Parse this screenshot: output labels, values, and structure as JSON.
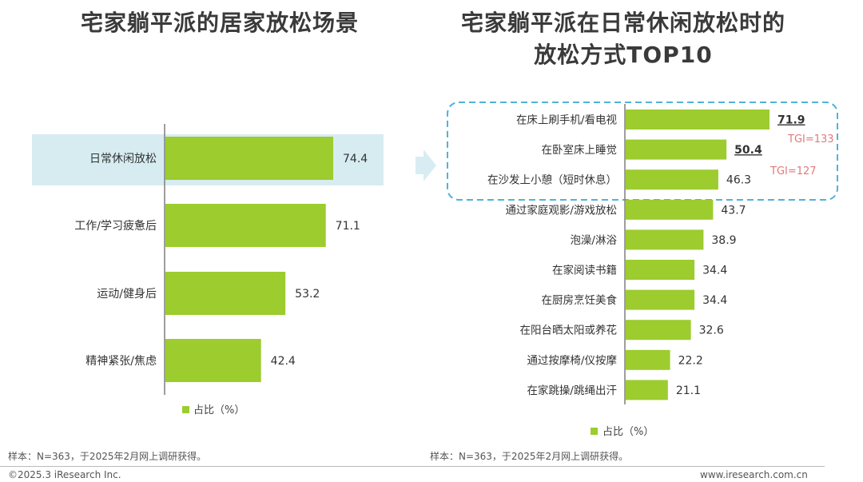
{
  "left_chart": {
    "title": "宅家躺平派的居家放松场景",
    "legend": "占比（%）",
    "accent_color": "#9ccc2e",
    "highlight_color": "#cfe9ef"
  },
  "right_chart": {
    "title_line1": "宅家躺平派在日常休闲放松时的",
    "title_line2": "放松方式TOP10",
    "legend": "占比（%）",
    "tgi_1": "TGI=133",
    "tgi_2": "TGI=127",
    "tgi_color": "#e07a7a",
    "box_color": "#4fb3d9"
  },
  "chart_data": [
    {
      "type": "bar",
      "orientation": "horizontal",
      "title": "宅家躺平派的居家放松场景",
      "categories": [
        "日常休闲放松",
        "工作/学习疲惫后",
        "运动/健身后",
        "精神紧张/焦虑"
      ],
      "series": [
        {
          "name": "占比（%）",
          "values": [
            74.4,
            71.1,
            53.2,
            42.4
          ]
        }
      ],
      "xlim": [
        0,
        80
      ],
      "highlighted": [
        "日常休闲放松"
      ]
    },
    {
      "type": "bar",
      "orientation": "horizontal",
      "title": "宅家躺平派在日常休闲放松时的放松方式TOP10",
      "categories": [
        "在床上刷手机/看电视",
        "在卧室床上睡觉",
        "在沙发上小憩（短时休息）",
        "通过家庭观影/游戏放松",
        "泡澡/淋浴",
        "在家阅读书籍",
        "在厨房烹饪美食",
        "在阳台晒太阳或养花",
        "通过按摩椅/仪按摩",
        "在家跳操/跳绳出汗"
      ],
      "series": [
        {
          "name": "占比（%）",
          "values": [
            71.9,
            50.4,
            46.3,
            43.7,
            38.9,
            34.4,
            34.4,
            32.6,
            22.2,
            21.1
          ]
        }
      ],
      "xlim": [
        0,
        80
      ],
      "highlighted": [
        "在床上刷手机/看电视",
        "在卧室床上睡觉",
        "在沙发上小憩（短时休息）"
      ],
      "annotations": [
        "TGI=133",
        "TGI=127"
      ]
    }
  ],
  "footer": {
    "sample_left": "样本：N=363，于2025年2月网上调研获得。",
    "sample_right": "样本：N=363，于2025年2月网上调研获得。",
    "copyright": "©2025.3 iResearch Inc.",
    "website": "www.iresearch.com.cn"
  }
}
